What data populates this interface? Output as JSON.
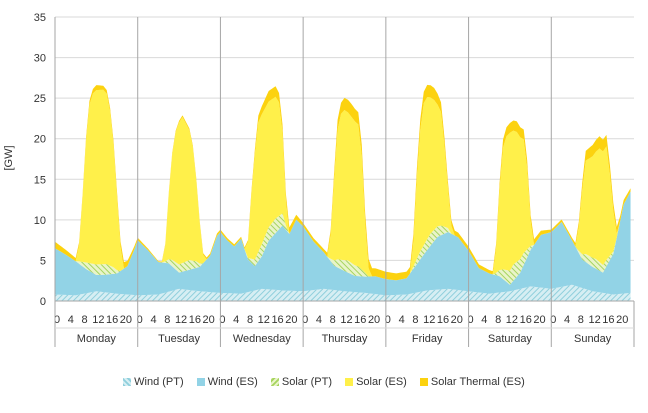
{
  "chart_data": {
    "type": "area",
    "stacked": true,
    "ylabel": "[GW]",
    "ylim": [
      0,
      35
    ],
    "yticks": [
      0,
      5,
      10,
      15,
      20,
      25,
      30,
      35
    ],
    "hour_tick_labels": [
      "0",
      "4",
      "8",
      "12",
      "16",
      "20"
    ],
    "days": [
      "Monday",
      "Tuesday",
      "Wednesday",
      "Thursday",
      "Friday",
      "Saturday",
      "Sunday"
    ],
    "x_unit": "hour of week (0-167)",
    "grid": "horizontal",
    "legend_position": "bottom",
    "series": [
      {
        "name": "Wind (PT)",
        "color": "#a8d8e0",
        "pattern": "hatch",
        "points": [
          [
            0,
            0.8
          ],
          [
            6,
            0.7
          ],
          [
            12,
            1.2
          ],
          [
            18,
            0.9
          ],
          [
            24,
            0.7
          ],
          [
            30,
            0.8
          ],
          [
            36,
            1.5
          ],
          [
            42,
            1.2
          ],
          [
            48,
            1.0
          ],
          [
            54,
            0.9
          ],
          [
            60,
            1.5
          ],
          [
            66,
            1.3
          ],
          [
            72,
            1.2
          ],
          [
            78,
            1.5
          ],
          [
            84,
            1.2
          ],
          [
            90,
            1.0
          ],
          [
            96,
            0.7
          ],
          [
            102,
            0.8
          ],
          [
            108,
            1.3
          ],
          [
            114,
            1.5
          ],
          [
            120,
            1.2
          ],
          [
            126,
            0.9
          ],
          [
            132,
            1.2
          ],
          [
            138,
            1.8
          ],
          [
            144,
            1.5
          ],
          [
            150,
            2.0
          ],
          [
            156,
            1.2
          ],
          [
            162,
            0.8
          ],
          [
            167,
            1.0
          ]
        ]
      },
      {
        "name": "Wind (ES)",
        "color": "#92d3e6",
        "pattern": "solid",
        "points": [
          [
            0,
            5.7
          ],
          [
            3,
            5.0
          ],
          [
            6,
            4.2
          ],
          [
            9,
            3.0
          ],
          [
            12,
            2.0
          ],
          [
            15,
            2.2
          ],
          [
            18,
            2.5
          ],
          [
            21,
            3.5
          ],
          [
            23,
            5.6
          ],
          [
            24,
            6.8
          ],
          [
            27,
            5.5
          ],
          [
            30,
            4.0
          ],
          [
            33,
            3.5
          ],
          [
            36,
            2.0
          ],
          [
            39,
            2.5
          ],
          [
            42,
            3.0
          ],
          [
            45,
            4.5
          ],
          [
            47,
            7.0
          ],
          [
            48,
            7.5
          ],
          [
            50,
            6.5
          ],
          [
            52,
            5.8
          ],
          [
            54,
            6.8
          ],
          [
            56,
            4.0
          ],
          [
            58,
            3.0
          ],
          [
            60,
            4.0
          ],
          [
            62,
            6.0
          ],
          [
            64,
            7.0
          ],
          [
            66,
            8.0
          ],
          [
            68,
            7.0
          ],
          [
            70,
            8.8
          ],
          [
            72,
            8.0
          ],
          [
            75,
            6.0
          ],
          [
            78,
            4.5
          ],
          [
            81,
            3.0
          ],
          [
            84,
            2.5
          ],
          [
            87,
            2.0
          ],
          [
            90,
            2.0
          ],
          [
            93,
            2.2
          ],
          [
            96,
            2.0
          ],
          [
            99,
            1.8
          ],
          [
            102,
            2.0
          ],
          [
            105,
            3.5
          ],
          [
            108,
            5.0
          ],
          [
            111,
            6.5
          ],
          [
            114,
            7.0
          ],
          [
            117,
            6.5
          ],
          [
            120,
            5.0
          ],
          [
            123,
            3.0
          ],
          [
            126,
            2.5
          ],
          [
            129,
            2.0
          ],
          [
            132,
            0.8
          ],
          [
            135,
            2.0
          ],
          [
            138,
            4.5
          ],
          [
            141,
            6.5
          ],
          [
            144,
            7.0
          ],
          [
            147,
            8.0
          ],
          [
            150,
            5.5
          ],
          [
            153,
            3.5
          ],
          [
            156,
            3.0
          ],
          [
            159,
            2.5
          ],
          [
            162,
            5.0
          ],
          [
            165,
            11.0
          ],
          [
            167,
            12.5
          ]
        ]
      },
      {
        "name": "Solar (PT)",
        "color": "#b5dc78",
        "pattern": "hatch",
        "points": [
          [
            0,
            0
          ],
          [
            6,
            0
          ],
          [
            7,
            0.3
          ],
          [
            9,
            0.8
          ],
          [
            12,
            1.3
          ],
          [
            15,
            1.3
          ],
          [
            17,
            0.8
          ],
          [
            19,
            0
          ],
          [
            24,
            0
          ],
          [
            31,
            0
          ],
          [
            32,
            0.2
          ],
          [
            34,
            0.8
          ],
          [
            36,
            1.0
          ],
          [
            39,
            1.2
          ],
          [
            41,
            0.8
          ],
          [
            43,
            0
          ],
          [
            48,
            0
          ],
          [
            55,
            0
          ],
          [
            56,
            0.2
          ],
          [
            58,
            0.8
          ],
          [
            60,
            1.5
          ],
          [
            64,
            1.8
          ],
          [
            66,
            1.5
          ],
          [
            67,
            0.5
          ],
          [
            68,
            0
          ],
          [
            72,
            0
          ],
          [
            79,
            0
          ],
          [
            80,
            0.3
          ],
          [
            82,
            1.0
          ],
          [
            85,
            1.5
          ],
          [
            88,
            1.2
          ],
          [
            90,
            0.5
          ],
          [
            91,
            0
          ],
          [
            96,
            0
          ],
          [
            103,
            0
          ],
          [
            104,
            0.3
          ],
          [
            106,
            1.0
          ],
          [
            109,
            1.5
          ],
          [
            112,
            1.2
          ],
          [
            114,
            0.5
          ],
          [
            115,
            0
          ],
          [
            120,
            0
          ],
          [
            127,
            0
          ],
          [
            128,
            0.3
          ],
          [
            130,
            1.2
          ],
          [
            133,
            2.0
          ],
          [
            136,
            1.5
          ],
          [
            138,
            0.5
          ],
          [
            139,
            0
          ],
          [
            144,
            0
          ],
          [
            151,
            0
          ],
          [
            152,
            0.3
          ],
          [
            154,
            1.0
          ],
          [
            157,
            1.2
          ],
          [
            160,
            0.8
          ],
          [
            162,
            0.3
          ],
          [
            163,
            0
          ],
          [
            167,
            0
          ]
        ]
      },
      {
        "name": "Solar (ES)",
        "color": "#fff04a",
        "pattern": "solid",
        "points": [
          [
            0,
            0
          ],
          [
            6,
            0
          ],
          [
            7,
            2.0
          ],
          [
            8,
            8.0
          ],
          [
            9,
            15.0
          ],
          [
            10,
            19.5
          ],
          [
            11,
            21.0
          ],
          [
            12,
            21.5
          ],
          [
            14,
            21.5
          ],
          [
            15,
            21.0
          ],
          [
            16,
            19.0
          ],
          [
            17,
            15.0
          ],
          [
            18,
            9.0
          ],
          [
            19,
            3.0
          ],
          [
            20,
            0
          ],
          [
            24,
            0
          ],
          [
            31,
            0
          ],
          [
            32,
            2.0
          ],
          [
            33,
            8.0
          ],
          [
            34,
            13.0
          ],
          [
            35,
            16.0
          ],
          [
            36,
            17.5
          ],
          [
            37,
            18.0
          ],
          [
            38,
            17.0
          ],
          [
            39,
            16.0
          ],
          [
            40,
            14.0
          ],
          [
            41,
            10.0
          ],
          [
            42,
            5.0
          ],
          [
            43,
            1.0
          ],
          [
            44,
            0
          ],
          [
            48,
            0
          ],
          [
            55,
            0
          ],
          [
            56,
            2.0
          ],
          [
            57,
            8.0
          ],
          [
            58,
            13.0
          ],
          [
            59,
            16.0
          ],
          [
            60,
            16.0
          ],
          [
            62,
            15.5
          ],
          [
            64,
            15.0
          ],
          [
            65,
            14.0
          ],
          [
            66,
            10.0
          ],
          [
            67,
            3.0
          ],
          [
            68,
            0
          ],
          [
            72,
            0
          ],
          [
            79,
            0
          ],
          [
            80,
            3.0
          ],
          [
            81,
            10.0
          ],
          [
            82,
            16.0
          ],
          [
            83,
            18.0
          ],
          [
            84,
            18.5
          ],
          [
            86,
            18.0
          ],
          [
            88,
            17.5
          ],
          [
            89,
            14.0
          ],
          [
            90,
            6.0
          ],
          [
            91,
            1.0
          ],
          [
            92,
            0
          ],
          [
            96,
            0
          ],
          [
            103,
            0
          ],
          [
            104,
            3.0
          ],
          [
            105,
            10.0
          ],
          [
            106,
            15.0
          ],
          [
            107,
            17.5
          ],
          [
            108,
            17.5
          ],
          [
            110,
            16.0
          ],
          [
            112,
            14.0
          ],
          [
            113,
            10.0
          ],
          [
            114,
            5.0
          ],
          [
            115,
            1.0
          ],
          [
            116,
            0
          ],
          [
            120,
            0
          ],
          [
            127,
            0
          ],
          [
            128,
            3.0
          ],
          [
            129,
            10.0
          ],
          [
            130,
            15.0
          ],
          [
            131,
            16.5
          ],
          [
            132,
            17.0
          ],
          [
            134,
            16.0
          ],
          [
            136,
            14.0
          ],
          [
            137,
            10.0
          ],
          [
            138,
            3.0
          ],
          [
            139,
            0
          ],
          [
            144,
            0
          ],
          [
            151,
            0
          ],
          [
            152,
            3.0
          ],
          [
            153,
            8.0
          ],
          [
            154,
            11.5
          ],
          [
            155,
            12.0
          ],
          [
            156,
            12.5
          ],
          [
            158,
            14.0
          ],
          [
            160,
            14.0
          ],
          [
            161,
            10.0
          ],
          [
            162,
            5.0
          ],
          [
            163,
            0.5
          ],
          [
            164,
            0
          ],
          [
            167,
            0
          ]
        ]
      },
      {
        "name": "Solar Thermal (ES)",
        "color": "#fcd20f",
        "pattern": "solid",
        "points": [
          [
            0,
            0.8
          ],
          [
            6,
            0.4
          ],
          [
            8,
            0.3
          ],
          [
            10,
            0.5
          ],
          [
            12,
            0.6
          ],
          [
            14,
            0.5
          ],
          [
            16,
            0.4
          ],
          [
            18,
            0.6
          ],
          [
            20,
            0.8
          ],
          [
            22,
            0.5
          ],
          [
            24,
            0.3
          ],
          [
            30,
            0.1
          ],
          [
            36,
            0.2
          ],
          [
            42,
            0.2
          ],
          [
            48,
            0.3
          ],
          [
            56,
            0.2
          ],
          [
            58,
            0.6
          ],
          [
            60,
            1.0
          ],
          [
            62,
            1.3
          ],
          [
            64,
            1.3
          ],
          [
            66,
            1.0
          ],
          [
            68,
            0.8
          ],
          [
            72,
            0.4
          ],
          [
            78,
            0.4
          ],
          [
            80,
            0.6
          ],
          [
            82,
            1.2
          ],
          [
            84,
            1.5
          ],
          [
            86,
            1.6
          ],
          [
            88,
            1.5
          ],
          [
            90,
            1.3
          ],
          [
            92,
            1.0
          ],
          [
            96,
            0.9
          ],
          [
            103,
            0.8
          ],
          [
            104,
            1.0
          ],
          [
            106,
            1.3
          ],
          [
            108,
            1.5
          ],
          [
            110,
            1.5
          ],
          [
            112,
            1.2
          ],
          [
            114,
            0.8
          ],
          [
            116,
            0.6
          ],
          [
            120,
            0.5
          ],
          [
            127,
            0.4
          ],
          [
            128,
            0.6
          ],
          [
            130,
            1.0
          ],
          [
            132,
            1.2
          ],
          [
            134,
            1.3
          ],
          [
            136,
            1.2
          ],
          [
            138,
            0.8
          ],
          [
            140,
            0.6
          ],
          [
            144,
            0.3
          ],
          [
            150,
            0.3
          ],
          [
            152,
            0.6
          ],
          [
            154,
            1.2
          ],
          [
            156,
            1.4
          ],
          [
            158,
            1.5
          ],
          [
            160,
            1.4
          ],
          [
            162,
            1.0
          ],
          [
            164,
            0.6
          ],
          [
            167,
            0.4
          ]
        ]
      }
    ]
  }
}
